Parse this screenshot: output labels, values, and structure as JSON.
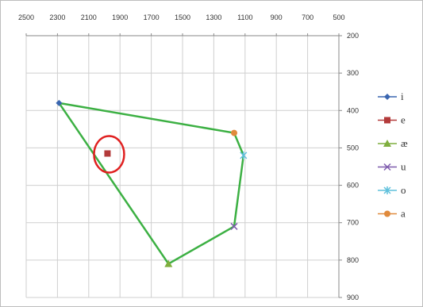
{
  "chart_data": {
    "type": "scatter",
    "title": "",
    "xlabel": "",
    "ylabel": "",
    "x_axis": {
      "reversed": true,
      "position": "top",
      "range": [
        2500,
        500
      ],
      "ticks": [
        2500,
        2300,
        2100,
        1900,
        1700,
        1500,
        1300,
        1100,
        900,
        700,
        500
      ]
    },
    "y_axis": {
      "reversed": true,
      "position": "right",
      "range": [
        200,
        900
      ],
      "ticks": [
        200,
        300,
        400,
        500,
        600,
        700,
        800,
        900
      ]
    },
    "grid": true,
    "legend_position": "right",
    "series": [
      {
        "name": "i",
        "x": 2290,
        "y": 380,
        "marker": "diamond",
        "color": "#3a66b0"
      },
      {
        "name": "e",
        "x": 1980,
        "y": 515,
        "marker": "square",
        "color": "#b33a3a"
      },
      {
        "name": "æ",
        "x": 1590,
        "y": 810,
        "marker": "triangle",
        "color": "#7fae3e"
      },
      {
        "name": "u",
        "x": 1170,
        "y": 710,
        "marker": "x",
        "color": "#7e5bad"
      },
      {
        "name": "o",
        "x": 1110,
        "y": 520,
        "marker": "star",
        "color": "#5fc0dc"
      },
      {
        "name": "a",
        "x": 1170,
        "y": 460,
        "marker": "circle",
        "color": "#e08a3c"
      }
    ],
    "annotations": {
      "polygon": {
        "color": "#3cb043",
        "vertices": [
          [
            2290,
            380
          ],
          [
            1170,
            460
          ],
          [
            1110,
            520
          ],
          [
            1170,
            710
          ],
          [
            1590,
            810
          ],
          [
            2290,
            380
          ]
        ]
      },
      "highlight_circle": {
        "color": "#e02020",
        "around_series": "e"
      }
    }
  }
}
